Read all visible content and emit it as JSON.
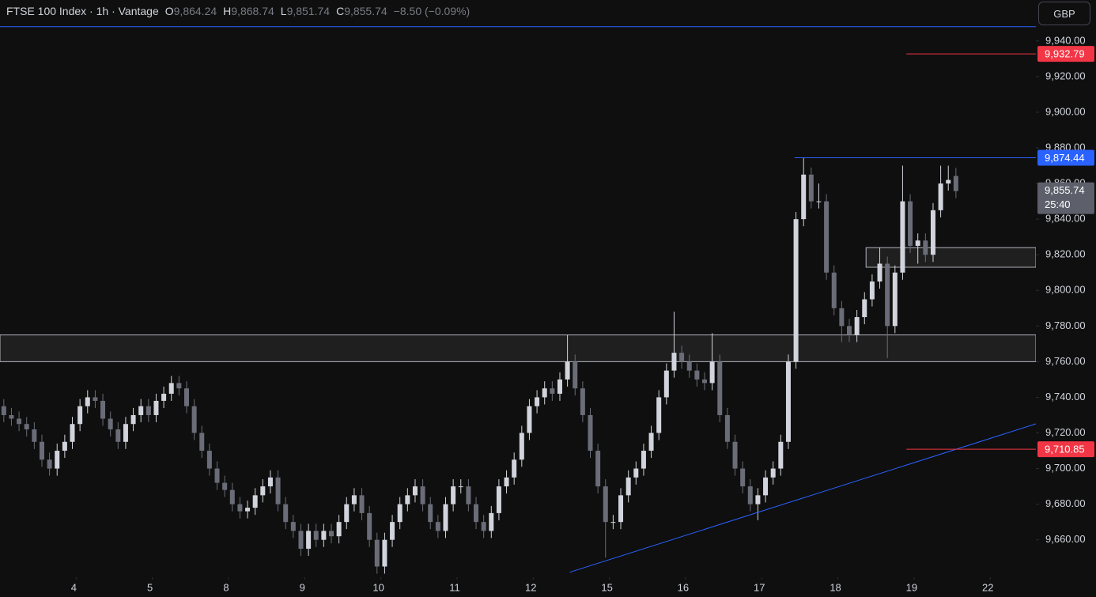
{
  "chart_data": {
    "type": "candlestick",
    "title": "FTSE 100 Index · 1h · Vantage",
    "ohlc_header": [
      {
        "key": "O",
        "text": "9,864.24"
      },
      {
        "key": "H",
        "text": "9,868.74"
      },
      {
        "key": "L",
        "text": "9,851.74"
      },
      {
        "key": "C",
        "text": "9,855.74"
      }
    ],
    "change_text": "−8.50 (−0.09%)",
    "currency": "GBP",
    "up_color": "#d1d4dc",
    "down_color": "#6a6d78",
    "x": [
      0.5,
      1.5,
      2.5,
      3.5,
      4.5,
      5.5,
      6.5,
      7.5,
      8.5,
      9.5,
      10.5,
      11.5,
      12.5,
      13.5,
      14.5,
      15.5,
      16.5,
      17.5,
      18.5,
      19.5,
      20.5,
      21.5,
      22.5,
      23.5,
      24.5,
      25.5,
      26.5,
      27.5,
      28.5,
      29.5,
      30.5,
      31.5,
      32.5,
      33.5,
      34.5,
      35.5,
      36.5,
      37.5,
      38.5,
      39.5,
      40.5,
      41.5,
      42.5,
      43.5,
      44.5,
      45.5,
      46.5,
      47.5,
      48.5,
      49.5,
      50.5,
      51.5,
      52.5,
      53.5,
      54.5,
      55.5,
      56.5,
      57.5,
      58.5,
      59.5,
      60.5,
      61.5,
      62.5,
      63.5,
      64.5,
      65.5,
      66.5,
      67.5,
      68.5,
      69.5,
      70.5,
      71.5,
      72.5,
      73.5,
      74.5,
      75.5,
      76.5,
      77.5,
      78.5,
      79.5,
      80.5,
      81.5,
      82.5,
      83.5,
      84.5,
      85.5,
      86.5,
      87.5,
      88.5,
      89.5,
      90.5,
      91.5,
      92.5,
      93.5,
      94.5,
      95.5,
      96.5,
      97.5,
      98.5,
      99.5,
      100.5,
      101.5,
      102.5,
      103.5,
      104.5,
      105.5,
      106.5,
      107.5,
      108.5,
      109.5,
      110.5,
      111.5,
      112.5,
      113.5,
      114.5,
      115.5,
      116.5,
      117.5,
      118.5,
      119.5,
      120.5,
      121.5,
      122.5,
      123.5,
      124.5,
      125.5
    ],
    "open": [
      9735,
      9730,
      9728,
      9725,
      9722,
      9715,
      9705,
      9700,
      9710,
      9715,
      9725,
      9735,
      9740,
      9738,
      9728,
      9722,
      9715,
      9725,
      9730,
      9735,
      9730,
      9738,
      9742,
      9748,
      9745,
      9735,
      9720,
      9710,
      9700,
      9692,
      9688,
      9680,
      9676,
      9678,
      9685,
      9690,
      9695,
      9680,
      9670,
      9665,
      9655,
      9665,
      9660,
      9665,
      9662,
      9670,
      9680,
      9685,
      9675,
      9660,
      9645,
      9660,
      9670,
      9680,
      9685,
      9690,
      9680,
      9670,
      9665,
      9680,
      9690,
      9690,
      9680,
      9670,
      9665,
      9675,
      9690,
      9695,
      9705,
      9720,
      9735,
      9740,
      9745,
      9742,
      9750,
      9760,
      9745,
      9730,
      9710,
      9690,
      9670,
      9670,
      9685,
      9695,
      9700,
      9710,
      9720,
      9740,
      9755,
      9765,
      9760,
      9755,
      9750,
      9748,
      9760,
      9730,
      9715,
      9700,
      9690,
      9680,
      9685,
      9695,
      9700,
      9715,
      9760,
      9840,
      9865,
      9850,
      9850,
      9810,
      9790,
      9780,
      9775,
      9785,
      9795,
      9805,
      9815,
      9780,
      9810,
      9850,
      9825,
      9828,
      9820,
      9845,
      9860,
      9864.24
    ],
    "high": [
      9739,
      9734,
      9732,
      9729,
      9726,
      9719,
      9709,
      9714,
      9719,
      9729,
      9739,
      9744,
      9744,
      9742,
      9732,
      9726,
      9729,
      9734,
      9739,
      9739,
      9742,
      9746,
      9752,
      9752,
      9749,
      9739,
      9724,
      9714,
      9704,
      9696,
      9692,
      9684,
      9682,
      9689,
      9694,
      9699,
      9699,
      9684,
      9674,
      9669,
      9669,
      9669,
      9669,
      9669,
      9674,
      9684,
      9689,
      9689,
      9679,
      9664,
      9664,
      9674,
      9684,
      9689,
      9694,
      9694,
      9684,
      9674,
      9684,
      9694,
      9694,
      9694,
      9684,
      9674,
      9679,
      9694,
      9699,
      9709,
      9724,
      9739,
      9744,
      9749,
      9749,
      9754,
      9775,
      9764,
      9749,
      9734,
      9714,
      9694,
      9674,
      9689,
      9699,
      9704,
      9714,
      9724,
      9744,
      9759,
      9788,
      9769,
      9764,
      9759,
      9754,
      9776,
      9764,
      9734,
      9719,
      9704,
      9694,
      9689,
      9699,
      9704,
      9719,
      9764,
      9844,
      9874.44,
      9869,
      9860,
      9854,
      9814,
      9794,
      9784,
      9789,
      9799,
      9809,
      9824,
      9819,
      9814,
      9870,
      9854,
      9832,
      9832,
      9849,
      9870,
      9870,
      9868.74
    ],
    "low": [
      9726,
      9724,
      9721,
      9718,
      9711,
      9701,
      9696,
      9696,
      9706,
      9711,
      9721,
      9731,
      9734,
      9724,
      9718,
      9711,
      9711,
      9721,
      9726,
      9726,
      9726,
      9734,
      9738,
      9741,
      9731,
      9716,
      9706,
      9696,
      9688,
      9684,
      9676,
      9672,
      9672,
      9674,
      9681,
      9686,
      9676,
      9666,
      9661,
      9651,
      9651,
      9656,
      9656,
      9658,
      9658,
      9666,
      9676,
      9671,
      9656,
      9641,
      9641,
      9656,
      9666,
      9676,
      9681,
      9676,
      9666,
      9661,
      9661,
      9676,
      9686,
      9676,
      9666,
      9661,
      9661,
      9671,
      9686,
      9691,
      9701,
      9716,
      9731,
      9736,
      9738,
      9738,
      9746,
      9741,
      9726,
      9706,
      9686,
      9650,
      9666,
      9666,
      9681,
      9691,
      9696,
      9706,
      9716,
      9736,
      9751,
      9756,
      9751,
      9746,
      9744,
      9744,
      9726,
      9711,
      9696,
      9686,
      9676,
      9671,
      9681,
      9691,
      9696,
      9711,
      9756,
      9836,
      9846,
      9846,
      9806,
      9786,
      9771,
      9771,
      9771,
      9781,
      9791,
      9801,
      9762,
      9776,
      9806,
      9821,
      9815,
      9816,
      9816,
      9841,
      9856,
      9851.74
    ],
    "close": [
      9730,
      9728,
      9725,
      9722,
      9715,
      9705,
      9700,
      9710,
      9715,
      9725,
      9735,
      9740,
      9738,
      9728,
      9722,
      9715,
      9725,
      9730,
      9735,
      9730,
      9738,
      9742,
      9748,
      9745,
      9735,
      9720,
      9710,
      9700,
      9692,
      9688,
      9680,
      9676,
      9678,
      9685,
      9690,
      9695,
      9680,
      9670,
      9665,
      9655,
      9665,
      9660,
      9665,
      9662,
      9670,
      9680,
      9685,
      9675,
      9660,
      9645,
      9660,
      9670,
      9680,
      9685,
      9690,
      9680,
      9670,
      9665,
      9680,
      9690,
      9690,
      9680,
      9670,
      9665,
      9675,
      9690,
      9695,
      9705,
      9720,
      9735,
      9740,
      9745,
      9742,
      9750,
      9760,
      9745,
      9730,
      9710,
      9690,
      9670,
      9670,
      9685,
      9695,
      9700,
      9710,
      9720,
      9740,
      9755,
      9765,
      9760,
      9755,
      9750,
      9748,
      9760,
      9730,
      9715,
      9700,
      9690,
      9680,
      9685,
      9695,
      9700,
      9715,
      9760,
      9840,
      9865,
      9850,
      9850,
      9810,
      9790,
      9780,
      9775,
      9785,
      9795,
      9805,
      9815,
      9780,
      9810,
      9850,
      9825,
      9828,
      9820,
      9845,
      9860,
      9862,
      9855.74
    ],
    "xlim": [
      0,
      136
    ],
    "xticks": [
      {
        "value": 10,
        "label": "4"
      },
      {
        "value": 20,
        "label": "5"
      },
      {
        "value": 30,
        "label": "8"
      },
      {
        "value": 40,
        "label": "9"
      },
      {
        "value": 50,
        "label": "10"
      },
      {
        "value": 60,
        "label": "11"
      },
      {
        "value": 70,
        "label": "12"
      },
      {
        "value": 80,
        "label": "15"
      },
      {
        "value": 90,
        "label": "16"
      },
      {
        "value": 100,
        "label": "17"
      },
      {
        "value": 110,
        "label": "18"
      },
      {
        "value": 120,
        "label": "19"
      },
      {
        "value": 130,
        "label": "22"
      }
    ],
    "ylim": [
      9639,
      9963
    ],
    "yticks": [
      {
        "value": 9660,
        "label": "9,660.00"
      },
      {
        "value": 9680,
        "label": "9,680.00"
      },
      {
        "value": 9700,
        "label": "9,700.00"
      },
      {
        "value": 9720,
        "label": "9,720.00"
      },
      {
        "value": 9740,
        "label": "9,740.00"
      },
      {
        "value": 9760,
        "label": "9,760.00"
      },
      {
        "value": 9780,
        "label": "9,780.00"
      },
      {
        "value": 9800,
        "label": "9,800.00"
      },
      {
        "value": 9820,
        "label": "9,820.00"
      },
      {
        "value": 9840,
        "label": "9,840.00"
      },
      {
        "value": 9860,
        "label": "9,860.00"
      },
      {
        "value": 9880,
        "label": "9,880.00"
      },
      {
        "value": 9900,
        "label": "9,900.00"
      },
      {
        "value": 9920,
        "label": "9,920.00"
      },
      {
        "value": 9940,
        "label": "9,940.00"
      }
    ],
    "zones": [
      {
        "from": 9760,
        "to": 9775,
        "x_start": 0
      },
      {
        "from": 9813,
        "to": 9824,
        "x_start": 113.7
      }
    ],
    "levels": [
      {
        "value": 9948,
        "color": "#2962ff",
        "x_start": 0
      },
      {
        "value": 9932.79,
        "label": "9,932.79",
        "color": "#f23645",
        "x_start": 119
      },
      {
        "value": 9874.44,
        "label": "9,874.44",
        "color": "#2962ff",
        "x_start": 104.3
      },
      {
        "value": 9710.85,
        "label": "9,710.85",
        "color": "#f23645",
        "x_start": 119
      }
    ],
    "trendline": {
      "x": [
        74.8,
        136
      ],
      "y": [
        9641.8,
        9725.1
      ],
      "color": "#2962ff"
    },
    "current_price": {
      "value": 9855.74,
      "label": "9,855.74",
      "countdown": "25:40"
    }
  }
}
